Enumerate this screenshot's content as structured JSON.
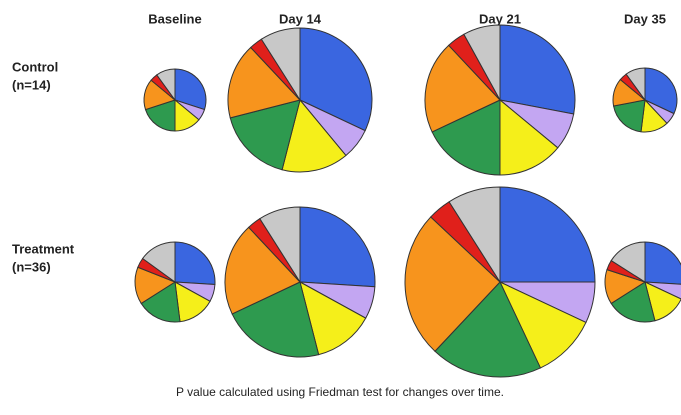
{
  "chart_data": {
    "type": "pie",
    "columns": [
      "Baseline",
      "Day 14",
      "Day 21",
      "Day 35"
    ],
    "colors": [
      "#3a66e0",
      "#c3a6f2",
      "#f5ef1a",
      "#2e9a4f",
      "#f7941d",
      "#e0201b",
      "#c8c8c8"
    ],
    "rows": [
      {
        "name": "Control",
        "n": "(n=14)",
        "pies": [
          {
            "values": [
              30,
              6,
              14,
              20,
              16,
              4,
              10
            ]
          },
          {
            "values": [
              32,
              7,
              15,
              17,
              17,
              3,
              9
            ]
          },
          {
            "values": [
              28,
              8,
              14,
              18,
              20,
              4,
              8
            ]
          },
          {
            "values": [
              32,
              6,
              14,
              20,
              14,
              4,
              10
            ]
          }
        ]
      },
      {
        "name": "Treatment",
        "n": "(n=36)",
        "pies": [
          {
            "values": [
              26,
              7,
              15,
              18,
              15,
              4,
              15
            ]
          },
          {
            "values": [
              26,
              7,
              13,
              22,
              20,
              3,
              9
            ]
          },
          {
            "values": [
              25,
              7,
              11,
              19,
              25,
              4,
              9
            ]
          },
          {
            "values": [
              26,
              6,
              14,
              20,
              14,
              4,
              16
            ]
          }
        ]
      }
    ],
    "footnote": "P value calculated using Friedman test for changes over time."
  }
}
